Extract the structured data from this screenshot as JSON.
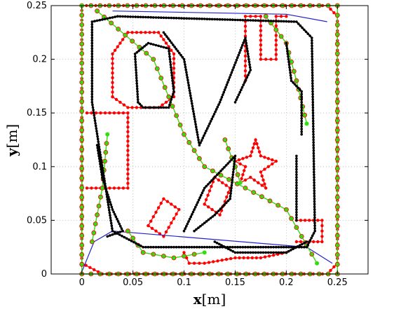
{
  "chart_data": {
    "type": "line",
    "title": "",
    "xlabel_var": "x",
    "xlabel_unit": "[m]",
    "ylabel_var": "y",
    "ylabel_unit": "[m]",
    "xlim": [
      -0.03,
      0.28
    ],
    "ylim": [
      0,
      0.25
    ],
    "grid": true,
    "x_ticks": [
      "0",
      "0.05",
      "0.1",
      "0.15",
      "0.2",
      "0.25"
    ],
    "x_tick_values": [
      0,
      0.05,
      0.1,
      0.15,
      0.2,
      0.25
    ],
    "y_ticks": [
      "0",
      "0.05",
      "0.1",
      "0.15",
      "0.2",
      "0.25"
    ],
    "y_tick_values": [
      0,
      0.05,
      0.1,
      0.15,
      0.2,
      0.25
    ],
    "colors": {
      "red": "#ff0000",
      "green": "#33dd11",
      "black": "#000000",
      "blue": "#2222cc"
    },
    "series": [
      {
        "color": "red",
        "marker": "dot",
        "paths": [
          [
            [
              0,
              0.25
            ],
            [
              0.24,
              0.25
            ],
            [
              0.25,
              0.24
            ],
            [
              0.25,
              0.01
            ],
            [
              0.24,
              0
            ],
            [
              0.02,
              0
            ],
            [
              0,
              0.01
            ],
            [
              0,
              0.25
            ]
          ],
          [
            [
              0.03,
              0.165
            ],
            [
              0.03,
              0.205
            ],
            [
              0.045,
              0.225
            ],
            [
              0.075,
              0.225
            ],
            [
              0.09,
              0.205
            ],
            [
              0.09,
              0.165
            ],
            [
              0.075,
              0.155
            ],
            [
              0.045,
              0.155
            ],
            [
              0.03,
              0.165
            ]
          ],
          [
            [
              0.005,
              0.15
            ],
            [
              0.045,
              0.15
            ],
            [
              0.045,
              0.08
            ],
            [
              0.005,
              0.08
            ]
          ],
          [
            [
              0.16,
              0.18
            ],
            [
              0.16,
              0.24
            ],
            [
              0.175,
              0.24
            ],
            [
              0.175,
              0.2
            ],
            [
              0.19,
              0.2
            ],
            [
              0.19,
              0.24
            ],
            [
              0.2,
              0.24
            ]
          ],
          [
            [
              0.16,
              0.1
            ],
            [
              0.155,
              0.085
            ],
            [
              0.165,
              0.09
            ],
            [
              0.18,
              0.08
            ],
            [
              0.175,
              0.095
            ],
            [
              0.19,
              0.105
            ],
            [
              0.175,
              0.11
            ],
            [
              0.17,
              0.125
            ],
            [
              0.165,
              0.11
            ],
            [
              0.15,
              0.105
            ],
            [
              0.16,
              0.1
            ]
          ],
          [
            [
              0.065,
              0.045
            ],
            [
              0.08,
              0.07
            ],
            [
              0.095,
              0.06
            ],
            [
              0.08,
              0.035
            ],
            [
              0.065,
              0.045
            ]
          ],
          [
            [
              0.12,
              0.065
            ],
            [
              0.13,
              0.09
            ],
            [
              0.145,
              0.08
            ],
            [
              0.135,
              0.055
            ],
            [
              0.12,
              0.065
            ]
          ],
          [
            [
              0.1,
              0.02
            ],
            [
              0.105,
              0.01
            ],
            [
              0.12,
              0.01
            ],
            [
              0.15,
              0.015
            ],
            [
              0.175,
              0.015
            ],
            [
              0.2,
              0.02
            ]
          ],
          [
            [
              0.21,
              0.05
            ],
            [
              0.235,
              0.05
            ],
            [
              0.235,
              0.03
            ],
            [
              0.21,
              0.03
            ]
          ]
        ]
      },
      {
        "color": "green",
        "marker": "dot",
        "paths": [
          [
            [
              0,
              0.25
            ],
            [
              0.25,
              0.25
            ],
            [
              0.25,
              0
            ],
            [
              0,
              0
            ],
            [
              0,
              0.25
            ]
          ],
          [
            [
              0.015,
              0.245
            ],
            [
              0.07,
              0.2
            ],
            [
              0.1,
              0.13
            ],
            [
              0.12,
              0.1
            ],
            [
              0.16,
              0.08
            ],
            [
              0.2,
              0.06
            ],
            [
              0.23,
              0.01
            ]
          ],
          [
            [
              0.045,
              0.04
            ],
            [
              0.06,
              0.02
            ],
            [
              0.09,
              0.015
            ],
            [
              0.12,
              0.02
            ]
          ],
          [
            [
              0.14,
              0.125
            ],
            [
              0.15,
              0.1
            ],
            [
              0.155,
              0.085
            ]
          ],
          [
            [
              0.18,
              0.24
            ],
            [
              0.2,
              0.215
            ],
            [
              0.21,
              0.18
            ],
            [
              0.22,
              0.14
            ]
          ],
          [
            [
              0.01,
              0.03
            ],
            [
              0.02,
              0.08
            ],
            [
              0.025,
              0.13
            ]
          ]
        ]
      },
      {
        "color": "black",
        "marker": "dot",
        "paths": [
          [
            [
              0.035,
              0.24
            ],
            [
              0.21,
              0.235
            ],
            [
              0.225,
              0.22
            ],
            [
              0.228,
              0.04
            ],
            [
              0.22,
              0.025
            ],
            [
              0.06,
              0.025
            ],
            [
              0.03,
              0.04
            ],
            [
              0.01,
              0.16
            ],
            [
              0.01,
              0.235
            ],
            [
              0.035,
              0.24
            ]
          ],
          [
            [
              0.055,
              0.16
            ],
            [
              0.052,
              0.205
            ],
            [
              0.065,
              0.215
            ],
            [
              0.085,
              0.21
            ],
            [
              0.09,
              0.17
            ],
            [
              0.085,
              0.155
            ],
            [
              0.06,
              0.155
            ],
            [
              0.055,
              0.16
            ]
          ],
          [
            [
              0.08,
              0.225
            ],
            [
              0.1,
              0.2
            ],
            [
              0.115,
              0.12
            ],
            [
              0.135,
              0.16
            ],
            [
              0.16,
              0.22
            ],
            [
              0.165,
              0.19
            ],
            [
              0.15,
              0.16
            ]
          ],
          [
            [
              0.1,
              0.04
            ],
            [
              0.12,
              0.08
            ],
            [
              0.15,
              0.11
            ],
            [
              0.145,
              0.07
            ],
            [
              0.13,
              0.055
            ],
            [
              0.11,
              0.04
            ]
          ],
          [
            [
              0.13,
              0.03
            ],
            [
              0.15,
              0.02
            ],
            [
              0.2,
              0.02
            ],
            [
              0.22,
              0.03
            ]
          ],
          [
            [
              0.2,
              0.215
            ],
            [
              0.205,
              0.18
            ],
            [
              0.215,
              0.17
            ],
            [
              0.215,
              0.13
            ]
          ],
          [
            [
              0.21,
              0.11
            ],
            [
              0.21,
              0.05
            ]
          ],
          [
            [
              0.015,
              0.12
            ],
            [
              0.02,
              0.09
            ],
            [
              0.03,
              0.06
            ],
            [
              0.04,
              0.04
            ],
            [
              0.025,
              0.035
            ]
          ]
        ]
      },
      {
        "color": "blue",
        "marker": "none",
        "paths": [
          [
            [
              0,
              0.002
            ],
            [
              0.012,
              0.03
            ],
            [
              0.03,
              0.04
            ],
            [
              0.22,
              0.025
            ],
            [
              0.245,
              0.01
            ]
          ],
          [
            [
              0.03,
              0.245
            ],
            [
              0.2,
              0.242
            ],
            [
              0.24,
              0.235
            ]
          ]
        ]
      }
    ]
  }
}
